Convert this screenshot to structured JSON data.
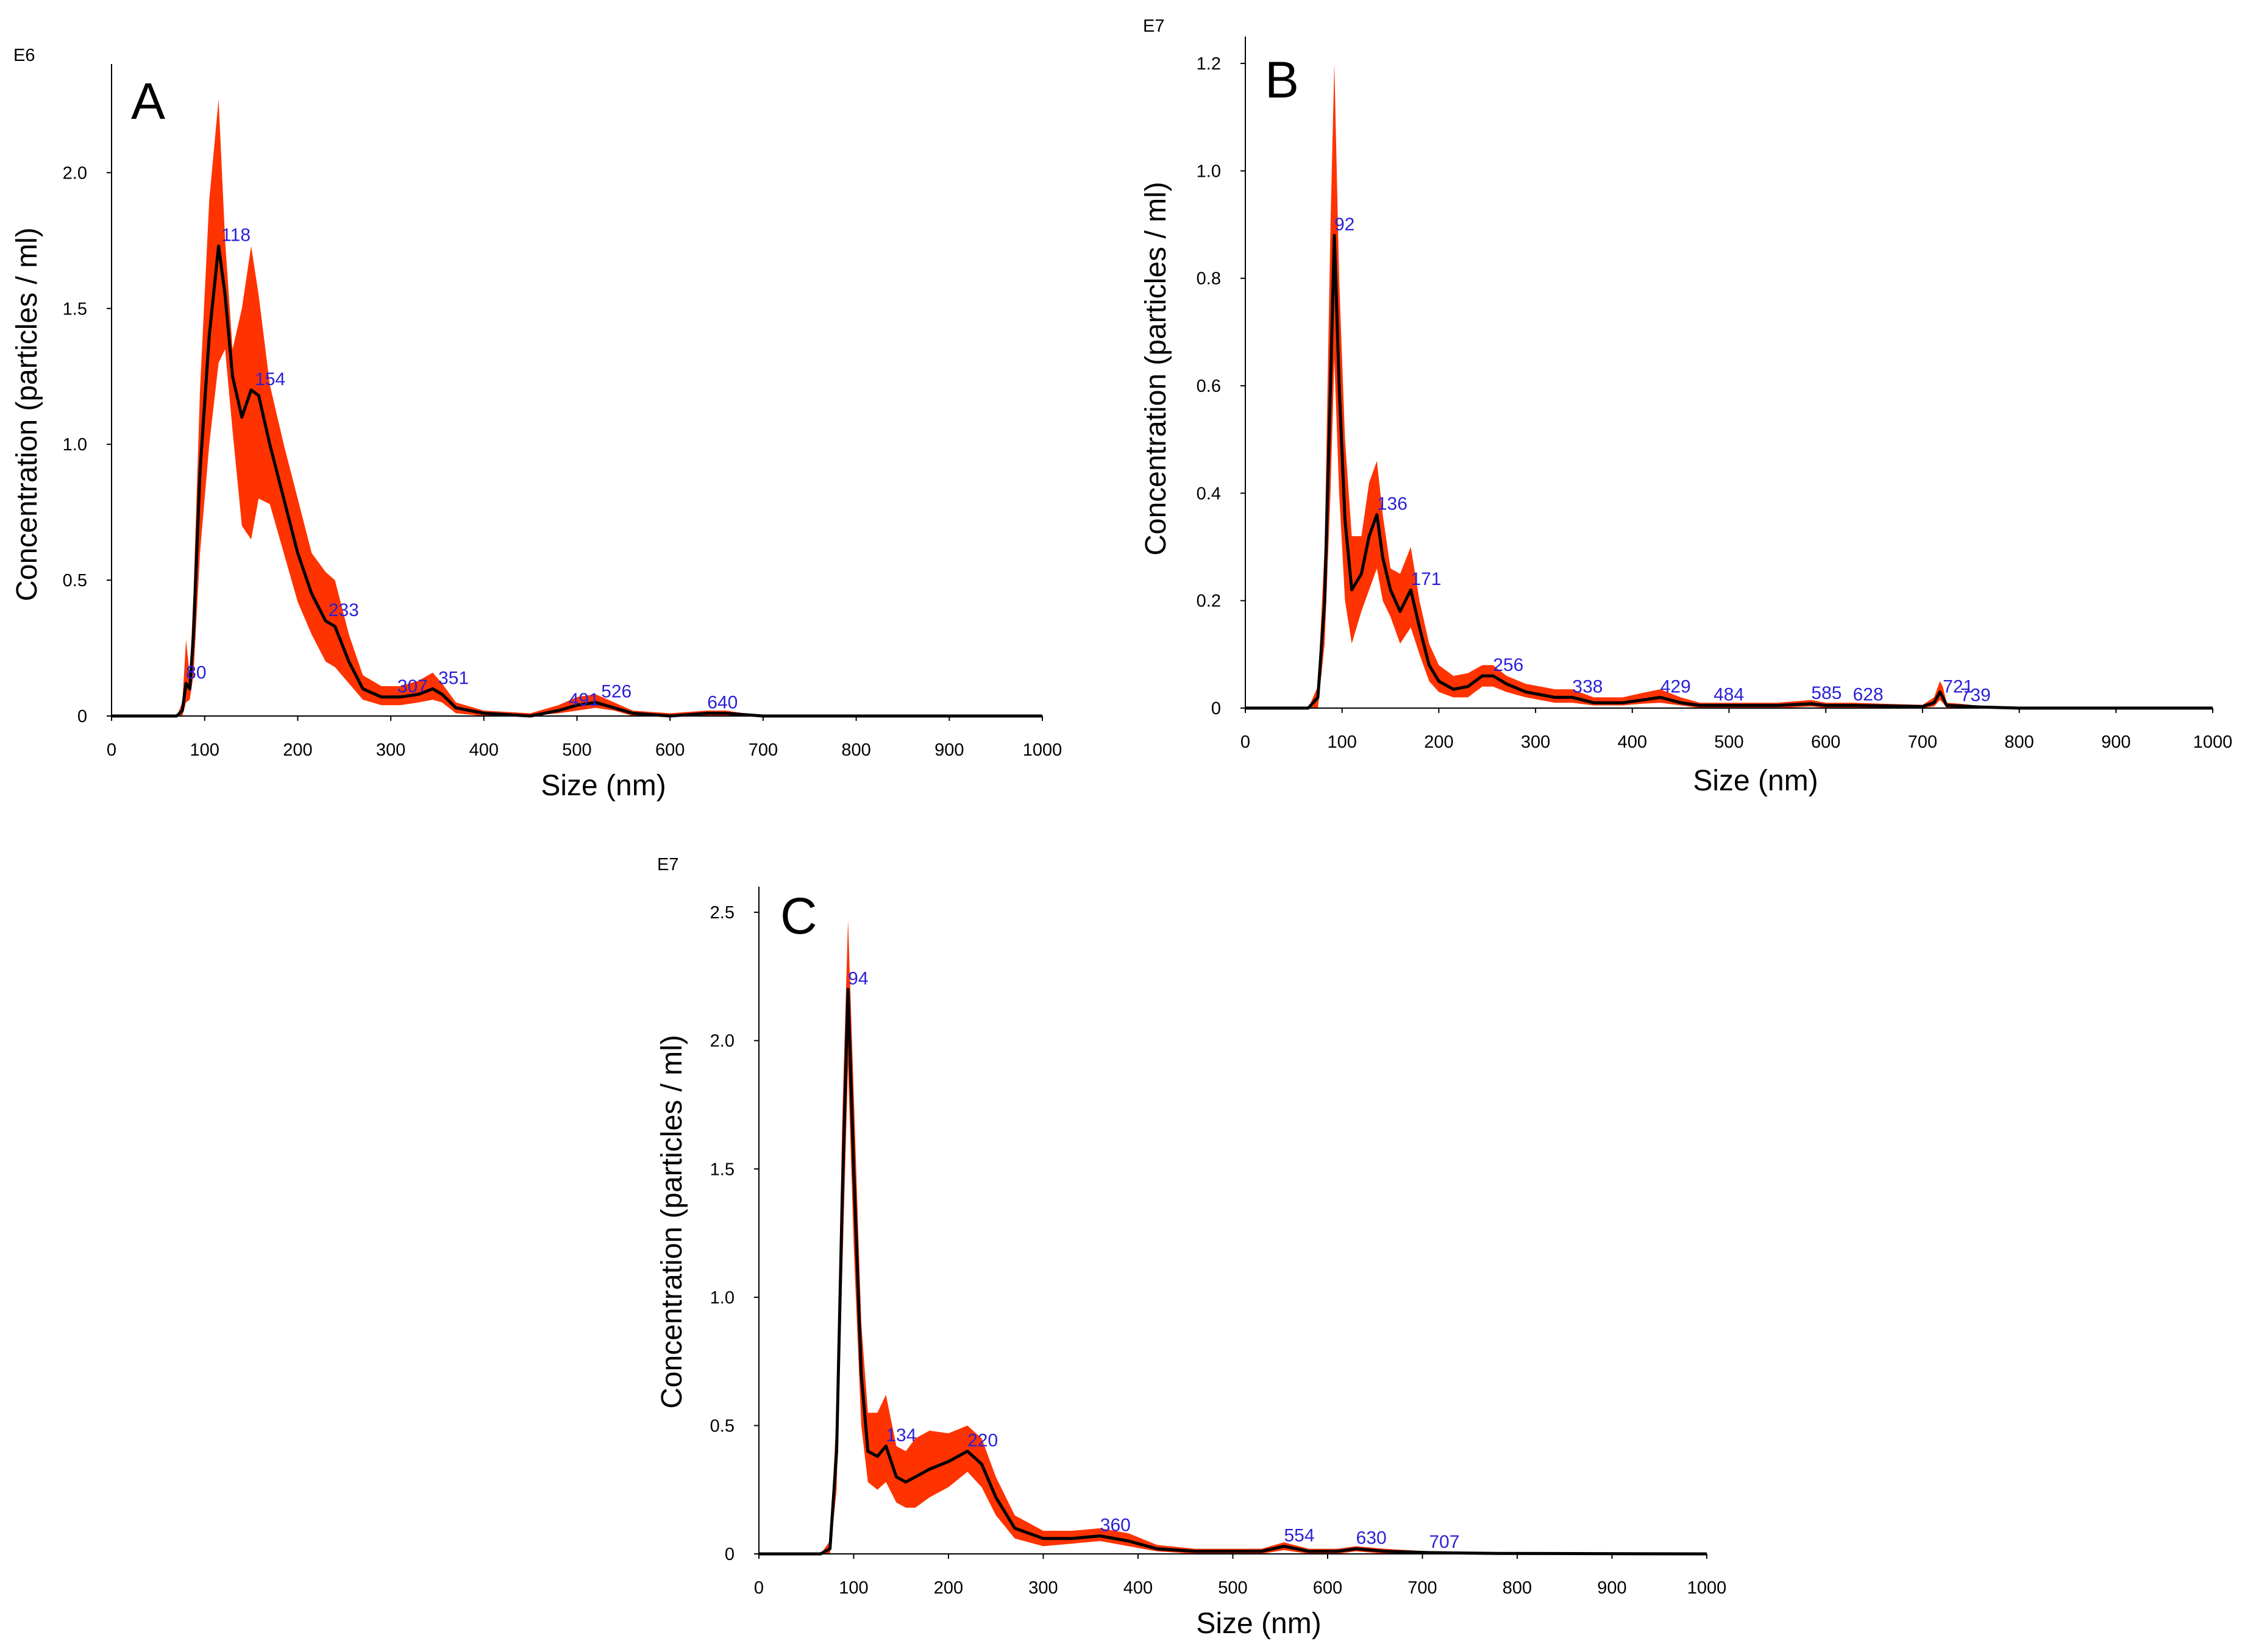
{
  "colors": {
    "band": "#ff3300",
    "line": "#000000",
    "peak_label": "#2b1fd6",
    "axis": "#000000"
  },
  "chart_data": [
    {
      "type": "line",
      "panel": "A",
      "title": "",
      "xlabel": "Size (nm)",
      "ylabel": "Concentration (particles / ml)",
      "exponent": "E6",
      "xlim": [
        0,
        1000
      ],
      "ylim": [
        0,
        2.4
      ],
      "xticks": [
        "0",
        "100",
        "200",
        "300",
        "400",
        "500",
        "600",
        "700",
        "800",
        "900",
        "1000"
      ],
      "yticks": [
        {
          "v": 0,
          "t": "0"
        },
        {
          "v": 0.5,
          "t": "0.5"
        },
        {
          "v": 1.0,
          "t": "1.0"
        },
        {
          "v": 1.5,
          "t": "1.5"
        },
        {
          "v": 2.0,
          "t": "2.0"
        }
      ],
      "x": [
        0,
        70,
        76,
        80,
        84,
        88,
        95,
        105,
        115,
        122,
        130,
        140,
        150,
        158,
        170,
        185,
        200,
        215,
        230,
        240,
        255,
        270,
        290,
        310,
        330,
        345,
        355,
        370,
        400,
        450,
        480,
        500,
        520,
        540,
        560,
        600,
        640,
        660,
        700,
        720,
        1000
      ],
      "mean": [
        0,
        0,
        0.02,
        0.12,
        0.1,
        0.3,
        0.9,
        1.4,
        1.73,
        1.55,
        1.25,
        1.1,
        1.2,
        1.18,
        1.0,
        0.8,
        0.6,
        0.45,
        0.35,
        0.33,
        0.2,
        0.1,
        0.07,
        0.07,
        0.08,
        0.1,
        0.08,
        0.03,
        0.01,
        0.0,
        0.02,
        0.04,
        0.05,
        0.03,
        0.01,
        0.0,
        0.01,
        0.01,
        0.0,
        0.0,
        0
      ],
      "upper": [
        0,
        0,
        0.05,
        0.28,
        0.15,
        0.45,
        1.2,
        1.9,
        2.27,
        1.75,
        1.35,
        1.5,
        1.73,
        1.55,
        1.22,
        1.0,
        0.8,
        0.6,
        0.53,
        0.5,
        0.3,
        0.15,
        0.11,
        0.11,
        0.13,
        0.16,
        0.12,
        0.05,
        0.02,
        0.01,
        0.04,
        0.07,
        0.08,
        0.05,
        0.02,
        0.01,
        0.02,
        0.02,
        0.0,
        0.0,
        0
      ],
      "lower": [
        0,
        0,
        0.0,
        0.05,
        0.06,
        0.15,
        0.6,
        1.0,
        1.3,
        1.35,
        1.05,
        0.7,
        0.65,
        0.8,
        0.78,
        0.6,
        0.42,
        0.3,
        0.2,
        0.18,
        0.12,
        0.06,
        0.04,
        0.04,
        0.05,
        0.06,
        0.05,
        0.01,
        0.0,
        0.0,
        0.01,
        0.02,
        0.03,
        0.02,
        0.0,
        0.0,
        0.0,
        0.0,
        0.0,
        0.0,
        0
      ],
      "peaks": [
        {
          "x": 80,
          "y": 0.12,
          "t": "80"
        },
        {
          "x": 118,
          "y": 1.73,
          "t": "118"
        },
        {
          "x": 154,
          "y": 1.2,
          "t": "154"
        },
        {
          "x": 233,
          "y": 0.35,
          "t": "233"
        },
        {
          "x": 307,
          "y": 0.07,
          "t": "307"
        },
        {
          "x": 351,
          "y": 0.1,
          "t": "351"
        },
        {
          "x": 491,
          "y": 0.02,
          "t": "491"
        },
        {
          "x": 526,
          "y": 0.05,
          "t": "526"
        },
        {
          "x": 640,
          "y": 0.01,
          "t": "640"
        }
      ]
    },
    {
      "type": "line",
      "panel": "B",
      "title": "",
      "xlabel": "Size (nm)",
      "ylabel": "Concentration (particles / ml)",
      "exponent": "E7",
      "xlim": [
        0,
        1000
      ],
      "ylim": [
        0,
        1.25
      ],
      "xticks": [
        "0",
        "100",
        "200",
        "300",
        "400",
        "500",
        "600",
        "700",
        "800",
        "900",
        "1000"
      ],
      "yticks": [
        {
          "v": 0,
          "t": "0"
        },
        {
          "v": 0.2,
          "t": "0.2"
        },
        {
          "v": 0.4,
          "t": "0.4"
        },
        {
          "v": 0.6,
          "t": "0.6"
        },
        {
          "v": 0.8,
          "t": "0.8"
        },
        {
          "v": 1.0,
          "t": "1.0"
        },
        {
          "v": 1.2,
          "t": "1.2"
        }
      ],
      "x": [
        0,
        65,
        75,
        82,
        88,
        92,
        97,
        103,
        110,
        120,
        128,
        136,
        142,
        150,
        160,
        171,
        180,
        190,
        200,
        215,
        230,
        245,
        256,
        270,
        290,
        320,
        338,
        360,
        390,
        410,
        429,
        450,
        470,
        484,
        500,
        550,
        585,
        600,
        628,
        660,
        700,
        712,
        718,
        721,
        725,
        739,
        760,
        800,
        1000
      ],
      "mean": [
        0,
        0,
        0.02,
        0.2,
        0.6,
        0.88,
        0.6,
        0.35,
        0.22,
        0.25,
        0.32,
        0.36,
        0.28,
        0.22,
        0.18,
        0.22,
        0.15,
        0.08,
        0.05,
        0.035,
        0.04,
        0.06,
        0.06,
        0.045,
        0.03,
        0.02,
        0.02,
        0.01,
        0.01,
        0.015,
        0.02,
        0.01,
        0.005,
        0.005,
        0.005,
        0.005,
        0.008,
        0.005,
        0.005,
        0.004,
        0.003,
        0.01,
        0.03,
        0.02,
        0.005,
        0.004,
        0.002,
        0,
        0
      ],
      "upper": [
        0,
        0,
        0.04,
        0.3,
        0.9,
        1.2,
        0.8,
        0.5,
        0.32,
        0.32,
        0.42,
        0.46,
        0.36,
        0.26,
        0.25,
        0.3,
        0.2,
        0.12,
        0.08,
        0.06,
        0.065,
        0.08,
        0.08,
        0.06,
        0.045,
        0.035,
        0.035,
        0.02,
        0.02,
        0.028,
        0.035,
        0.02,
        0.01,
        0.01,
        0.01,
        0.01,
        0.015,
        0.01,
        0.01,
        0.008,
        0.006,
        0.02,
        0.05,
        0.04,
        0.01,
        0.008,
        0.004,
        0,
        0
      ],
      "lower": [
        0,
        0,
        0.0,
        0.12,
        0.4,
        0.65,
        0.4,
        0.2,
        0.12,
        0.18,
        0.22,
        0.26,
        0.2,
        0.17,
        0.12,
        0.15,
        0.1,
        0.05,
        0.03,
        0.02,
        0.02,
        0.04,
        0.04,
        0.03,
        0.02,
        0.01,
        0.01,
        0.005,
        0.005,
        0.008,
        0.01,
        0.005,
        0.0,
        0.0,
        0.0,
        0.0,
        0.003,
        0.0,
        0.0,
        0.0,
        0.0,
        0.003,
        0.015,
        0.01,
        0.0,
        0.0,
        0.0,
        0,
        0
      ],
      "peaks": [
        {
          "x": 92,
          "y": 0.88,
          "t": "92"
        },
        {
          "x": 136,
          "y": 0.36,
          "t": "136"
        },
        {
          "x": 171,
          "y": 0.22,
          "t": "171"
        },
        {
          "x": 256,
          "y": 0.06,
          "t": "256"
        },
        {
          "x": 338,
          "y": 0.02,
          "t": "338"
        },
        {
          "x": 429,
          "y": 0.02,
          "t": "429"
        },
        {
          "x": 484,
          "y": 0.005,
          "t": "484"
        },
        {
          "x": 585,
          "y": 0.008,
          "t": "585"
        },
        {
          "x": 628,
          "y": 0.005,
          "t": "628"
        },
        {
          "x": 721,
          "y": 0.02,
          "t": "721"
        },
        {
          "x": 739,
          "y": 0.004,
          "t": "739"
        }
      ]
    },
    {
      "type": "line",
      "panel": "C",
      "title": "",
      "xlabel": "Size (nm)",
      "ylabel": "Concentration (particles / ml)",
      "exponent": "E7",
      "xlim": [
        0,
        1000
      ],
      "ylim": [
        0,
        2.6
      ],
      "xticks": [
        "0",
        "100",
        "200",
        "300",
        "400",
        "500",
        "600",
        "700",
        "800",
        "900",
        "1000"
      ],
      "yticks": [
        {
          "v": 0,
          "t": "0"
        },
        {
          "v": 0.5,
          "t": "0.5"
        },
        {
          "v": 1.0,
          "t": "1.0"
        },
        {
          "v": 1.5,
          "t": "1.5"
        },
        {
          "v": 2.0,
          "t": "2.0"
        },
        {
          "v": 2.5,
          "t": "2.5"
        }
      ],
      "x": [
        0,
        65,
        75,
        82,
        88,
        94,
        100,
        108,
        115,
        125,
        134,
        145,
        155,
        165,
        180,
        200,
        220,
        235,
        250,
        270,
        300,
        330,
        360,
        390,
        420,
        460,
        500,
        530,
        554,
        580,
        610,
        630,
        660,
        707,
        750,
        780,
        1000
      ],
      "mean": [
        0,
        0,
        0.02,
        0.4,
        1.4,
        2.2,
        1.5,
        0.7,
        0.4,
        0.38,
        0.42,
        0.3,
        0.28,
        0.3,
        0.33,
        0.36,
        0.4,
        0.35,
        0.22,
        0.1,
        0.06,
        0.06,
        0.07,
        0.05,
        0.02,
        0.01,
        0.01,
        0.01,
        0.03,
        0.01,
        0.01,
        0.02,
        0.01,
        0.005,
        0.003,
        0.002,
        0
      ],
      "upper": [
        0,
        0,
        0.05,
        0.55,
        1.7,
        2.47,
        1.8,
        0.9,
        0.55,
        0.55,
        0.62,
        0.42,
        0.4,
        0.45,
        0.48,
        0.47,
        0.5,
        0.45,
        0.3,
        0.15,
        0.09,
        0.09,
        0.1,
        0.08,
        0.035,
        0.02,
        0.02,
        0.02,
        0.045,
        0.02,
        0.02,
        0.03,
        0.02,
        0.01,
        0.006,
        0.004,
        0
      ],
      "lower": [
        0,
        0,
        0.0,
        0.25,
        1.1,
        1.9,
        1.2,
        0.5,
        0.28,
        0.25,
        0.28,
        0.2,
        0.18,
        0.18,
        0.22,
        0.26,
        0.32,
        0.26,
        0.15,
        0.06,
        0.03,
        0.04,
        0.05,
        0.03,
        0.01,
        0.0,
        0.0,
        0.0,
        0.015,
        0.0,
        0.0,
        0.01,
        0.0,
        0.0,
        0.0,
        0.0,
        0
      ],
      "peaks": [
        {
          "x": 94,
          "y": 2.2,
          "t": "94"
        },
        {
          "x": 134,
          "y": 0.42,
          "t": "134"
        },
        {
          "x": 220,
          "y": 0.4,
          "t": "220"
        },
        {
          "x": 360,
          "y": 0.07,
          "t": "360"
        },
        {
          "x": 554,
          "y": 0.03,
          "t": "554"
        },
        {
          "x": 630,
          "y": 0.02,
          "t": "630"
        },
        {
          "x": 707,
          "y": 0.005,
          "t": "707"
        }
      ]
    }
  ]
}
